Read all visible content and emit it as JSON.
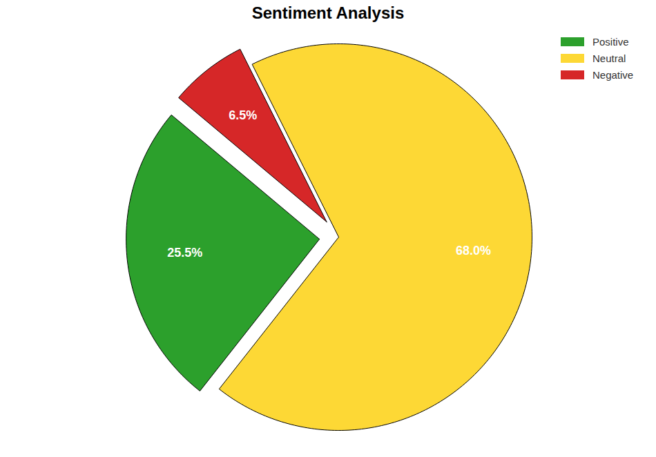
{
  "chart_data": {
    "type": "pie",
    "title": "Sentiment Analysis",
    "categories": [
      "Positive",
      "Neutral",
      "Negative"
    ],
    "values": [
      25.5,
      68.0,
      6.5
    ],
    "value_labels": [
      "25.5%",
      "68.0%",
      "6.5%"
    ],
    "colors": [
      "#2ca02c",
      "#fdd835",
      "#d62728"
    ],
    "data_labels": true,
    "legend": "upper right"
  }
}
